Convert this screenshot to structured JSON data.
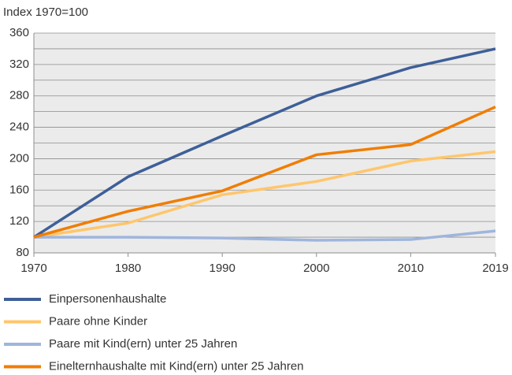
{
  "chart_data": {
    "type": "line",
    "y_axis_label": "Index 1970=100",
    "x": [
      1970,
      1980,
      1990,
      2000,
      2010,
      2019
    ],
    "xlim": [
      1970,
      2019
    ],
    "xticks": [
      1970,
      1980,
      1990,
      2000,
      2010,
      2019
    ],
    "ylim": [
      80,
      360
    ],
    "yticks": [
      80,
      120,
      160,
      200,
      240,
      280,
      320,
      360
    ],
    "minor_grid_yticks": [
      100,
      140,
      180,
      220,
      260,
      300,
      340
    ],
    "grid": true,
    "legend": "bottom",
    "series": [
      {
        "name": "Einpersonenhaushalte",
        "color": "#3e5f98",
        "values": [
          100,
          177,
          229,
          280,
          316,
          340
        ]
      },
      {
        "name": "Paare ohne Kinder",
        "color": "#ffc66b",
        "values": [
          100,
          118,
          154,
          171,
          197,
          209
        ]
      },
      {
        "name": "Paare mit Kind(ern) unter 25 Jahren",
        "color": "#9fb5dc",
        "values": [
          100,
          100,
          99,
          96,
          97,
          108
        ]
      },
      {
        "name": "Einelternhaushalte mit Kind(ern) unter 25 Jahren",
        "color": "#f07d00",
        "values": [
          100,
          133,
          159,
          205,
          218,
          266
        ]
      }
    ]
  }
}
